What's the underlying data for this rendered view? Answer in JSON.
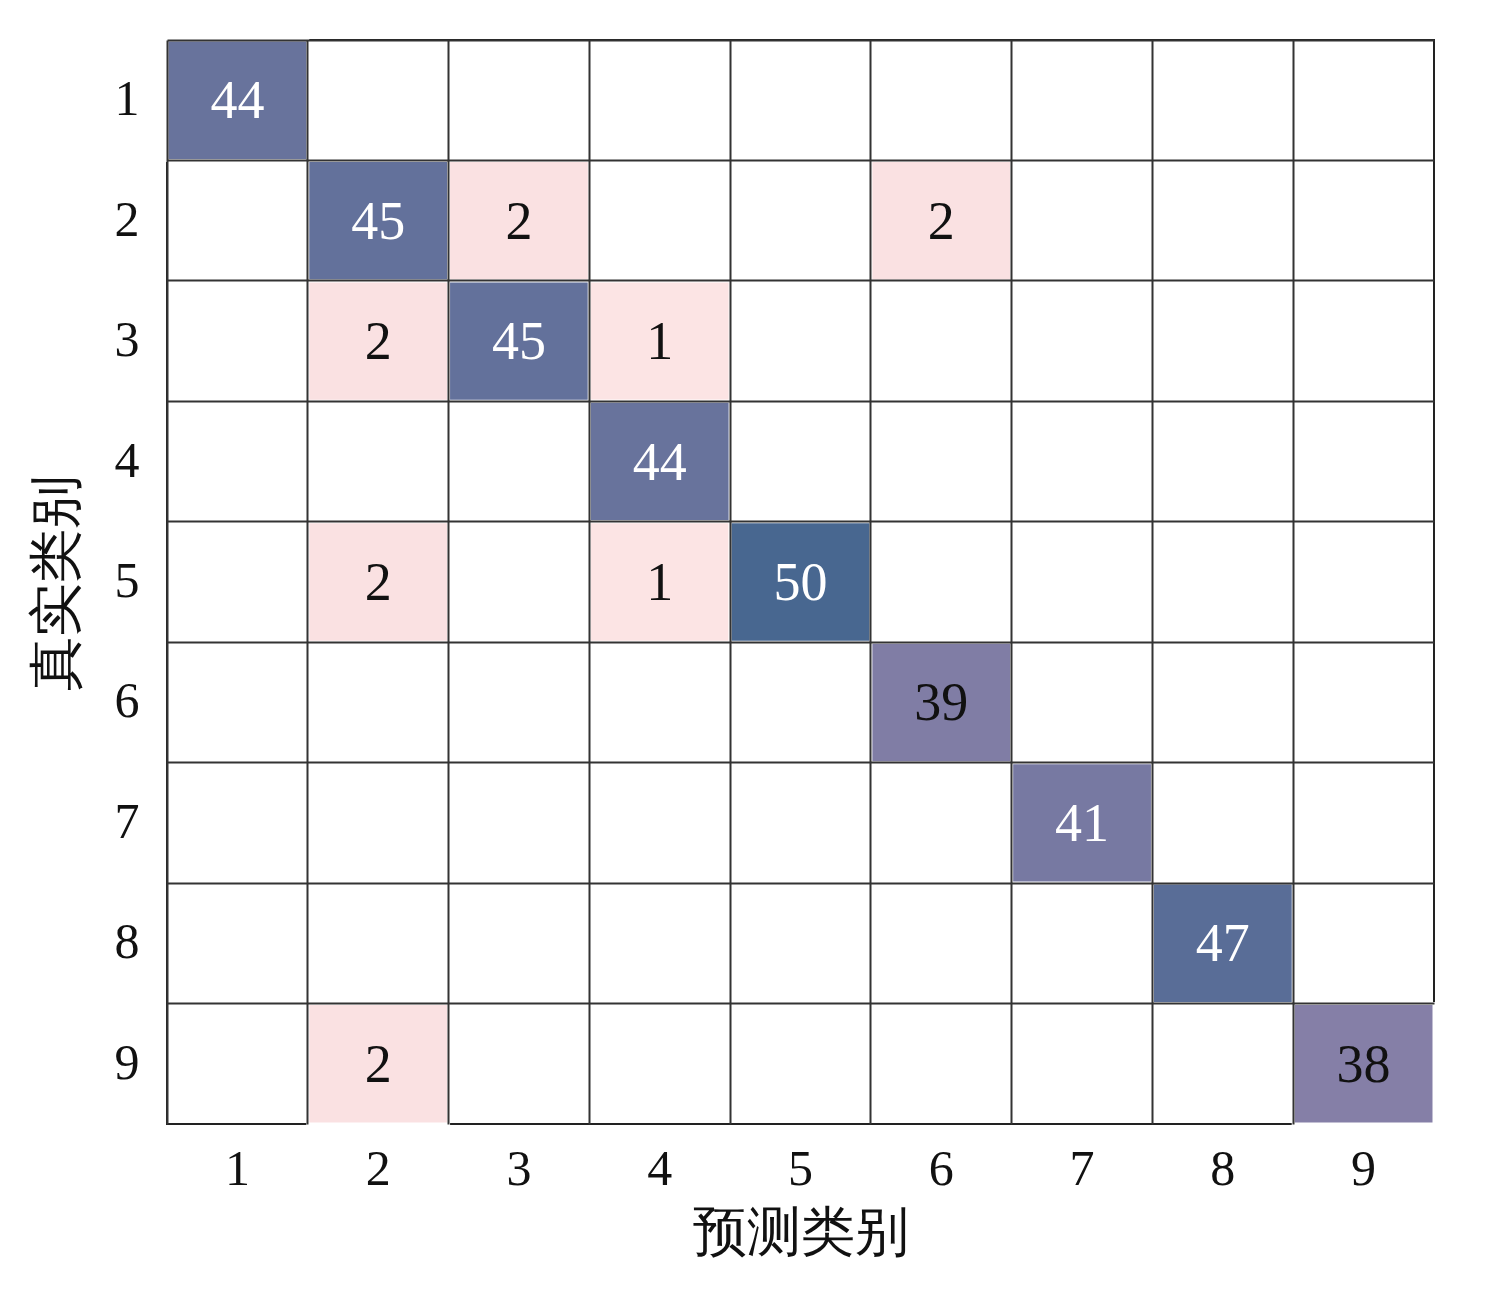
{
  "chart_data": {
    "type": "heatmap",
    "xlabel": "预测类别",
    "ylabel": "真实类别",
    "categories": [
      "1",
      "2",
      "3",
      "4",
      "5",
      "6",
      "7",
      "8",
      "9"
    ],
    "y_categories": [
      "1",
      "2",
      "3",
      "4",
      "5",
      "6",
      "7",
      "8",
      "9"
    ],
    "cells": [
      [
        44,
        null,
        null,
        null,
        null,
        null,
        null,
        null,
        null
      ],
      [
        null,
        45,
        2,
        null,
        null,
        2,
        null,
        null,
        null
      ],
      [
        null,
        2,
        45,
        1,
        null,
        null,
        null,
        null,
        null
      ],
      [
        null,
        null,
        null,
        44,
        null,
        null,
        null,
        null,
        null
      ],
      [
        null,
        2,
        null,
        1,
        50,
        null,
        null,
        null,
        null
      ],
      [
        null,
        null,
        null,
        null,
        null,
        39,
        null,
        null,
        null
      ],
      [
        null,
        null,
        null,
        null,
        null,
        null,
        41,
        null,
        null
      ],
      [
        null,
        null,
        null,
        null,
        null,
        null,
        null,
        47,
        null
      ],
      [
        null,
        2,
        null,
        null,
        null,
        null,
        null,
        null,
        38
      ]
    ],
    "colors": [
      "#fce4e4",
      "#486790"
    ],
    "data_labels": true,
    "grid": true
  }
}
